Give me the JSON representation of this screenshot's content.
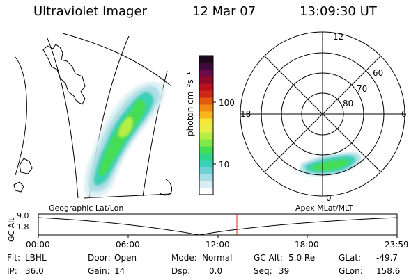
{
  "header": {
    "title": "Ultraviolet Imager",
    "date": "12 Mar 07",
    "time": "13:09:30 UT"
  },
  "colorbar": {
    "label": "photon cm⁻²s⁻¹",
    "ticks": [
      "100",
      "10"
    ],
    "colors": [
      "#ffffff",
      "#d8eef2",
      "#a8dde6",
      "#6fd0d8",
      "#3ecfb8",
      "#2fd58a",
      "#45dd55",
      "#7fe84a",
      "#b6ee44",
      "#e4ef48",
      "#f6e63a",
      "#f7b51e",
      "#f28a12",
      "#e05a10",
      "#d02818",
      "#b8101c",
      "#8e0a2a",
      "#6a0a46",
      "#3e0a3e",
      "#1a0a1a"
    ]
  },
  "geo_panel": {
    "caption": "Geographic Lat/Lon"
  },
  "polar_panel": {
    "caption": "Apex MLat/MLT",
    "mlt_labels": [
      "12",
      "18",
      "6",
      "0"
    ],
    "lat_labels": [
      "60",
      "70",
      "80"
    ]
  },
  "altitude_plot": {
    "ylabel": "GC Alt",
    "yticks": [
      "9.0",
      "1.8"
    ],
    "xticks": [
      "00:00",
      "06:00",
      "12:00",
      "18:00",
      "23:59"
    ]
  },
  "info": {
    "filter_label": "Flt:",
    "filter_value": "LBHL",
    "ip_label": "IP:",
    "ip_value": "36.0",
    "door_label": "Door:",
    "door_value": "Open",
    "gain_label": "Gain:",
    "gain_value": "14",
    "mode_label": "Mode:",
    "mode_value": "Normal",
    "dsp_label": "Dsp:",
    "dsp_value": "0.0",
    "gcalt_label": "GC Alt:",
    "gcalt_value": "5.0 Re",
    "seq_label": "Seq:",
    "seq_value": "39",
    "glat_label": "GLat:",
    "glat_value": "-49.7",
    "glon_label": "GLon:",
    "glon_value": "158.6"
  }
}
